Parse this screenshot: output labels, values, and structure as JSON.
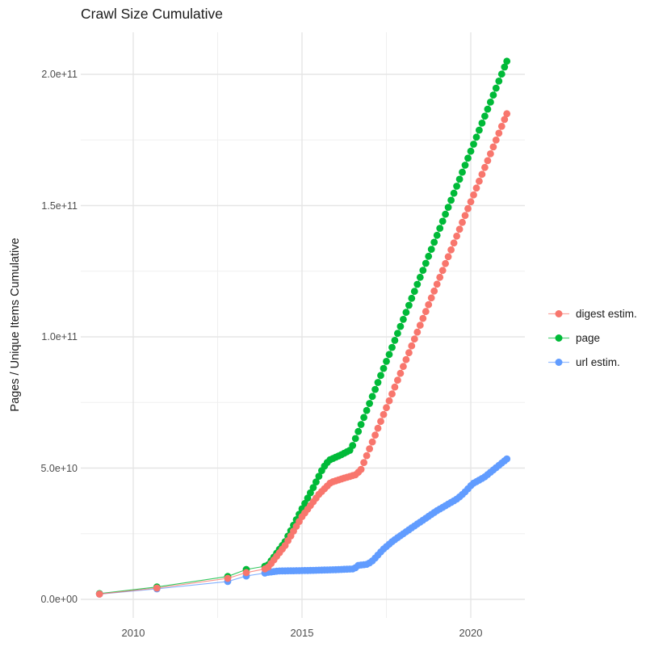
{
  "title": "Crawl Size Cumulative",
  "y_axis": {
    "title": "Pages / Unique Items Cumulative",
    "ticks": [
      "0.0e+00",
      "5.0e+10",
      "1.0e+11",
      "1.5e+11",
      "2.0e+11"
    ],
    "tick_values_e9": [
      0,
      50,
      100,
      150,
      200
    ],
    "minor_values_e9": [
      25,
      75,
      125,
      175
    ]
  },
  "x_axis": {
    "ticks": [
      "2010",
      "2015",
      "2020"
    ],
    "tick_values": [
      2010,
      2015,
      2020
    ],
    "minor_values": [
      2012.5,
      2017.5
    ]
  },
  "legend": {
    "items": [
      {
        "label": "digest estim.",
        "color": "#F8766D"
      },
      {
        "label": "page",
        "color": "#00BA38"
      },
      {
        "label": "url estim.",
        "color": "#619CFF"
      }
    ]
  },
  "colors": {
    "background": "#FFFFFF",
    "grid_major": "#E5E5E5",
    "grid_minor": "#EFEFEF",
    "axis_text": "#4D4D4D",
    "text": "#1A1A1A"
  },
  "chart_data": {
    "type": "scatter",
    "title": "Crawl Size Cumulative",
    "xlabel": "",
    "ylabel": "Pages / Unique Items Cumulative",
    "x_range": [
      2008.45,
      2021.6
    ],
    "y_range_e9": [
      0,
      216
    ],
    "grid": true,
    "legend_position": "right",
    "units": "values in 1e9 (billions); y tick labels shown in scientific notation",
    "sampling": {
      "sparse_years": [
        2009.0,
        2010.7,
        2012.8,
        2013.35,
        2013.9
      ],
      "monthly_start": 2014.0,
      "monthly_end": 2021.07,
      "points_per_year": 12
    },
    "series": [
      {
        "name": "digest estim.",
        "color": "#F8766D",
        "z": 3,
        "anchors_year_value_e9": [
          [
            2009.0,
            2.0
          ],
          [
            2010.7,
            4.3
          ],
          [
            2012.8,
            8.0
          ],
          [
            2013.35,
            10.2
          ],
          [
            2013.9,
            11.6
          ],
          [
            2014.0,
            12.3
          ],
          [
            2014.5,
            20.5
          ],
          [
            2015.0,
            31.5
          ],
          [
            2015.5,
            40.0
          ],
          [
            2015.85,
            44.5
          ],
          [
            2016.2,
            46.0
          ],
          [
            2016.6,
            47.5
          ],
          [
            2016.75,
            49.5
          ],
          [
            2021.07,
            185.0
          ]
        ]
      },
      {
        "name": "page",
        "color": "#00BA38",
        "z": 1,
        "anchors_year_value_e9": [
          [
            2009.0,
            2.2
          ],
          [
            2010.7,
            4.7
          ],
          [
            2012.8,
            8.7
          ],
          [
            2013.35,
            11.4
          ],
          [
            2013.9,
            12.6
          ],
          [
            2014.0,
            13.2
          ],
          [
            2014.5,
            22.0
          ],
          [
            2015.0,
            34.5
          ],
          [
            2015.35,
            43.0
          ],
          [
            2015.62,
            50.0
          ],
          [
            2015.8,
            53.0
          ],
          [
            2016.15,
            55.0
          ],
          [
            2016.45,
            57.0
          ],
          [
            2021.07,
            205.0
          ]
        ]
      },
      {
        "name": "url estim.",
        "color": "#619CFF",
        "z": 2,
        "anchors_year_value_e9": [
          [
            2009.0,
            2.0
          ],
          [
            2010.7,
            4.0
          ],
          [
            2012.8,
            6.8
          ],
          [
            2013.35,
            8.9
          ],
          [
            2013.9,
            10.0
          ],
          [
            2014.0,
            10.3
          ],
          [
            2014.3,
            10.8
          ],
          [
            2015.2,
            11.0
          ],
          [
            2016.0,
            11.3
          ],
          [
            2016.55,
            11.6
          ],
          [
            2016.65,
            12.9
          ],
          [
            2016.95,
            13.4
          ],
          [
            2017.1,
            14.8
          ],
          [
            2017.4,
            19.0
          ],
          [
            2017.7,
            22.3
          ],
          [
            2018.2,
            26.8
          ],
          [
            2019.0,
            33.8
          ],
          [
            2019.6,
            38.3
          ],
          [
            2019.8,
            40.5
          ],
          [
            2020.05,
            44.0
          ],
          [
            2020.4,
            46.5
          ],
          [
            2021.07,
            53.5
          ]
        ]
      }
    ]
  }
}
